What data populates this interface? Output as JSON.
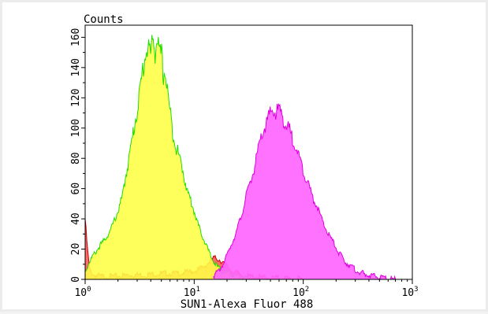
{
  "chart_data": {
    "type": "area",
    "title": "",
    "xlabel": "SUN1-Alexa Fluor 488",
    "ylabel": "Counts",
    "x_scale": "log",
    "xlim": [
      1,
      1000
    ],
    "ylim": [
      0,
      168
    ],
    "grid": false,
    "x_ticks": [
      {
        "value": 1,
        "base": "10",
        "exp": "0"
      },
      {
        "value": 10,
        "base": "10",
        "exp": "1"
      },
      {
        "value": 100,
        "base": "10",
        "exp": "2"
      },
      {
        "value": 1000,
        "base": "10",
        "exp": "3"
      }
    ],
    "y_ticks": [
      "0",
      "20",
      "40",
      "60",
      "80",
      "100",
      "120",
      "140",
      "160"
    ],
    "series": [
      {
        "fill": "#ff5c5c",
        "stroke": "#cc0000",
        "opacity": 0.9,
        "x": [
          1.0,
          1.05,
          1.1,
          1.2,
          1.4,
          1.8,
          2.5,
          3.5,
          5.0,
          7.0,
          9.0,
          10.5,
          12.0,
          13.0,
          14.0,
          15.0,
          16.0,
          17.0,
          18.0,
          19.0,
          20.0,
          21.0,
          22.0,
          23.0,
          25.0,
          27.0,
          30.0,
          35.0,
          45.0,
          60.0,
          100.0
        ],
        "y": [
          40,
          20,
          6,
          3,
          2,
          2,
          3,
          3,
          4,
          4,
          5,
          6,
          8,
          10,
          12,
          14,
          14,
          13,
          12,
          10,
          9,
          7,
          6,
          5,
          4,
          3,
          2,
          2,
          1,
          1,
          0
        ]
      },
      {
        "fill": "#ffff44",
        "stroke": "#22dd00",
        "opacity": 0.88,
        "x": [
          1.0,
          1.1,
          1.3,
          1.5,
          1.7,
          2.0,
          2.2,
          2.4,
          2.6,
          2.8,
          3.0,
          3.2,
          3.4,
          3.6,
          3.8,
          4.0,
          4.2,
          4.4,
          4.6,
          4.8,
          5.0,
          5.2,
          5.4,
          5.6,
          5.8,
          6.0,
          6.3,
          6.6,
          7.0,
          7.5,
          8.0,
          8.5,
          9.0,
          10.0,
          11.0,
          12.0,
          13.0,
          14.0,
          15.0,
          16.0,
          17.5,
          20.0,
          22.0,
          25.0,
          30.0,
          35.0
        ],
        "y": [
          5,
          12,
          20,
          26,
          32,
          45,
          55,
          72,
          85,
          100,
          112,
          125,
          140,
          150,
          155,
          148,
          160,
          150,
          162,
          145,
          150,
          135,
          138,
          128,
          120,
          110,
          100,
          92,
          85,
          78,
          70,
          60,
          55,
          45,
          35,
          28,
          22,
          16,
          12,
          9,
          6,
          4,
          3,
          2,
          1,
          0
        ]
      },
      {
        "fill": "#ff66ff",
        "stroke": "#dd00dd",
        "opacity": 0.92,
        "x": [
          15.0,
          17.0,
          19.0,
          21.0,
          24.0,
          27.0,
          30.0,
          33.0,
          36.0,
          40.0,
          44.0,
          48.0,
          52.0,
          56.0,
          60.0,
          65.0,
          70.0,
          75.0,
          80.0,
          85.0,
          90.0,
          100.0,
          110.0,
          120.0,
          135.0,
          150.0,
          170.0,
          190.0,
          210.0,
          240.0,
          280.0,
          320.0,
          380.0,
          450.0,
          550.0,
          700.0
        ],
        "y": [
          2,
          6,
          12,
          20,
          30,
          42,
          55,
          65,
          75,
          90,
          100,
          106,
          112,
          110,
          112,
          108,
          100,
          98,
          92,
          90,
          82,
          72,
          65,
          55,
          48,
          38,
          30,
          24,
          18,
          12,
          8,
          5,
          3,
          2,
          1,
          0
        ]
      }
    ]
  }
}
